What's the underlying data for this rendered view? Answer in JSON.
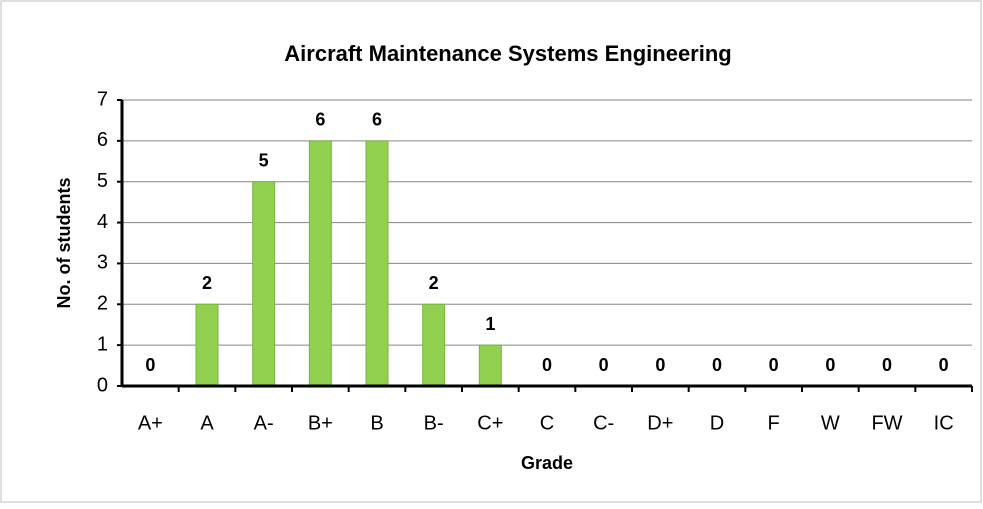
{
  "chart_data": {
    "type": "bar",
    "title": "Aircraft Maintenance Systems Engineering",
    "x_label": "Grade",
    "y_label": "No. of students",
    "categories": [
      "A+",
      "A",
      "A-",
      "B+",
      "B",
      "B-",
      "C+",
      "C",
      "C-",
      "D+",
      "D",
      "F",
      "W",
      "FW",
      "IC"
    ],
    "values": [
      0,
      2,
      5,
      6,
      6,
      2,
      1,
      0,
      0,
      0,
      0,
      0,
      0,
      0,
      0
    ],
    "color": "#92d050",
    "ylim": [
      0,
      7
    ],
    "yticks": [
      0,
      1,
      2,
      3,
      4,
      5,
      6,
      7
    ],
    "grid": true
  }
}
